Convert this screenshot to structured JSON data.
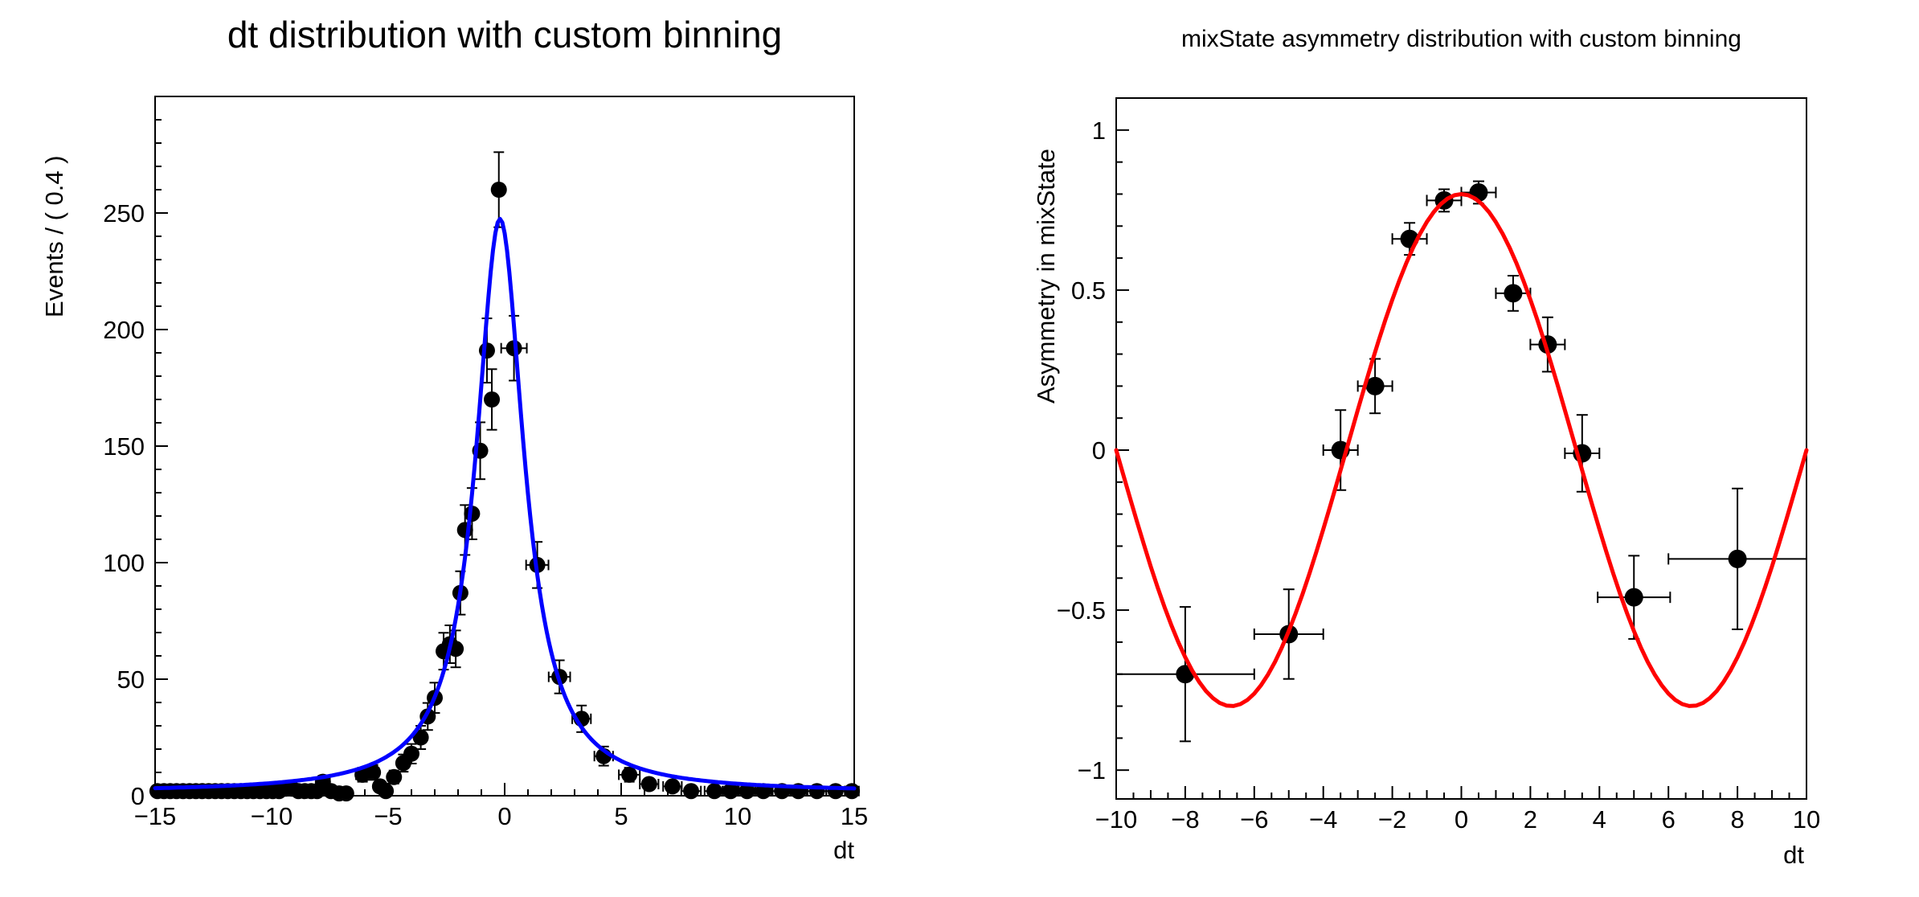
{
  "canvas": {
    "background": "#ffffff"
  },
  "chart_data": [
    {
      "id": "dt_distribution",
      "type": "scatter",
      "title": "dt distribution with custom binning",
      "xlabel": "dt",
      "ylabel": "Events / ( 0.4 )",
      "xlim": [
        -15,
        15
      ],
      "ylim": [
        0,
        300
      ],
      "xticks": [
        -15,
        -10,
        -5,
        0,
        5,
        10,
        15
      ],
      "yticks": [
        0,
        50,
        100,
        150,
        200,
        250
      ],
      "x_minor_step": 1,
      "y_minor_step": 10,
      "grid": false,
      "legend": "none",
      "marker_color": "#000000",
      "error_color": "#000000",
      "curve_color": "#0000ff",
      "curve": {
        "shape": "cauchy",
        "amplitude": 246,
        "center": -0.2,
        "hwhm": 1.25,
        "baseline": 1.5
      },
      "points": [
        {
          "x": -14.9,
          "y": 2,
          "ex": 0.14,
          "ey": 1.4
        },
        {
          "x": -14.62,
          "y": 2,
          "ex": 0.14,
          "ey": 1.4
        },
        {
          "x": -14.35,
          "y": 2,
          "ex": 0.14,
          "ey": 1.4
        },
        {
          "x": -14.08,
          "y": 2,
          "ex": 0.14,
          "ey": 1.4
        },
        {
          "x": -13.8,
          "y": 2,
          "ex": 0.14,
          "ey": 1.4
        },
        {
          "x": -13.52,
          "y": 2,
          "ex": 0.14,
          "ey": 1.4
        },
        {
          "x": -13.25,
          "y": 2,
          "ex": 0.14,
          "ey": 1.4
        },
        {
          "x": -12.98,
          "y": 2,
          "ex": 0.14,
          "ey": 1.4
        },
        {
          "x": -12.7,
          "y": 2,
          "ex": 0.14,
          "ey": 1.4
        },
        {
          "x": -12.42,
          "y": 2,
          "ex": 0.14,
          "ey": 1.4
        },
        {
          "x": -12.15,
          "y": 2,
          "ex": 0.14,
          "ey": 1.4
        },
        {
          "x": -11.88,
          "y": 2,
          "ex": 0.14,
          "ey": 1.4
        },
        {
          "x": -11.6,
          "y": 2,
          "ex": 0.14,
          "ey": 1.4
        },
        {
          "x": -11.32,
          "y": 2,
          "ex": 0.14,
          "ey": 1.4
        },
        {
          "x": -11.05,
          "y": 2,
          "ex": 0.14,
          "ey": 1.4
        },
        {
          "x": -10.78,
          "y": 2,
          "ex": 0.14,
          "ey": 1.4
        },
        {
          "x": -10.5,
          "y": 2,
          "ex": 0.14,
          "ey": 1.4
        },
        {
          "x": -10.22,
          "y": 2,
          "ex": 0.14,
          "ey": 1.4
        },
        {
          "x": -9.95,
          "y": 2,
          "ex": 0.14,
          "ey": 1.4
        },
        {
          "x": -9.68,
          "y": 2,
          "ex": 0.14,
          "ey": 1.4
        },
        {
          "x": -9.4,
          "y": 3,
          "ex": 0.14,
          "ey": 1.7
        },
        {
          "x": -9.12,
          "y": 3,
          "ex": 0.14,
          "ey": 1.7
        },
        {
          "x": -8.85,
          "y": 2,
          "ex": 0.14,
          "ey": 1.4
        },
        {
          "x": -8.58,
          "y": 2,
          "ex": 0.14,
          "ey": 1.4
        },
        {
          "x": -8.3,
          "y": 2,
          "ex": 0.14,
          "ey": 1.4
        },
        {
          "x": -8.05,
          "y": 2,
          "ex": 0.14,
          "ey": 1.4
        },
        {
          "x": -7.8,
          "y": 6,
          "ex": 0.3,
          "ey": 2.5
        },
        {
          "x": -7.45,
          "y": 2,
          "ex": 0.2,
          "ey": 1.4
        },
        {
          "x": -7.1,
          "y": 1,
          "ex": 0.18,
          "ey": 1.0
        },
        {
          "x": -6.8,
          "y": 1,
          "ex": 0.18,
          "ey": 1.0
        },
        {
          "x": -6.1,
          "y": 9,
          "ex": 0.28,
          "ey": 3.0
        },
        {
          "x": -5.65,
          "y": 10,
          "ex": 0.25,
          "ey": 3.2
        },
        {
          "x": -5.35,
          "y": 4,
          "ex": 0.18,
          "ey": 2.0
        },
        {
          "x": -5.1,
          "y": 2,
          "ex": 0.15,
          "ey": 1.4
        },
        {
          "x": -4.75,
          "y": 8,
          "ex": 0.2,
          "ey": 2.8
        },
        {
          "x": -4.35,
          "y": 14,
          "ex": 0.2,
          "ey": 3.7
        },
        {
          "x": -4.0,
          "y": 18,
          "ex": 0.2,
          "ey": 4.2
        },
        {
          "x": -3.6,
          "y": 25,
          "ex": 0.2,
          "ey": 5.0
        },
        {
          "x": -3.3,
          "y": 34,
          "ex": 0.18,
          "ey": 5.8
        },
        {
          "x": -3.0,
          "y": 42,
          "ex": 0.18,
          "ey": 6.5
        },
        {
          "x": -2.62,
          "y": 62,
          "ex": 0.15,
          "ey": 7.9
        },
        {
          "x": -2.35,
          "y": 65,
          "ex": 0.13,
          "ey": 8.1
        },
        {
          "x": -2.1,
          "y": 63,
          "ex": 0.13,
          "ey": 7.9
        },
        {
          "x": -1.9,
          "y": 87,
          "ex": 0.13,
          "ey": 9.3
        },
        {
          "x": -1.7,
          "y": 114,
          "ex": 0.13,
          "ey": 10.7
        },
        {
          "x": -1.4,
          "y": 121,
          "ex": 0.13,
          "ey": 11.0
        },
        {
          "x": -1.05,
          "y": 148,
          "ex": 0.13,
          "ey": 12.2
        },
        {
          "x": -0.76,
          "y": 191,
          "ex": 0.13,
          "ey": 13.8
        },
        {
          "x": -0.55,
          "y": 170,
          "ex": 0.12,
          "ey": 13.0
        },
        {
          "x": -0.25,
          "y": 260,
          "ex": 0.15,
          "ey": 16.1
        },
        {
          "x": 0.4,
          "y": 192,
          "ex": 0.55,
          "ey": 13.9
        },
        {
          "x": 1.4,
          "y": 99,
          "ex": 0.48,
          "ey": 9.9
        },
        {
          "x": 2.35,
          "y": 51,
          "ex": 0.46,
          "ey": 7.1
        },
        {
          "x": 3.3,
          "y": 33,
          "ex": 0.4,
          "ey": 5.7
        },
        {
          "x": 4.25,
          "y": 17,
          "ex": 0.4,
          "ey": 4.1
        },
        {
          "x": 5.35,
          "y": 9,
          "ex": 0.45,
          "ey": 3.0
        },
        {
          "x": 6.2,
          "y": 5,
          "ex": 0.4,
          "ey": 2.2
        },
        {
          "x": 7.2,
          "y": 4,
          "ex": 0.4,
          "ey": 2.0
        },
        {
          "x": 8.0,
          "y": 2,
          "ex": 0.42,
          "ey": 1.4
        },
        {
          "x": 9.0,
          "y": 2,
          "ex": 0.42,
          "ey": 1.4
        },
        {
          "x": 9.7,
          "y": 2,
          "ex": 0.35,
          "ey": 1.4
        },
        {
          "x": 10.4,
          "y": 2,
          "ex": 0.35,
          "ey": 1.4
        },
        {
          "x": 11.1,
          "y": 2,
          "ex": 0.35,
          "ey": 1.4
        },
        {
          "x": 11.9,
          "y": 2,
          "ex": 0.4,
          "ey": 1.4
        },
        {
          "x": 12.6,
          "y": 2,
          "ex": 0.35,
          "ey": 1.4
        },
        {
          "x": 13.4,
          "y": 2,
          "ex": 0.4,
          "ey": 1.4
        },
        {
          "x": 14.2,
          "y": 2,
          "ex": 0.4,
          "ey": 1.4
        },
        {
          "x": 14.9,
          "y": 2,
          "ex": 0.3,
          "ey": 1.4
        }
      ]
    },
    {
      "id": "mixstate_asymmetry",
      "type": "scatter",
      "title": "mixState asymmetry distribution with custom binning",
      "xlabel": "dt",
      "ylabel": "Asymmetry in mixState",
      "xlim": [
        -10,
        10
      ],
      "ylim": [
        -1.09,
        1.1
      ],
      "xticks": [
        -10,
        -8,
        -6,
        -4,
        -2,
        0,
        2,
        4,
        6,
        8,
        10
      ],
      "yticks": [
        -1,
        -0.5,
        0,
        0.5,
        1
      ],
      "x_minor_step": 0.5,
      "x_mid_step": 1,
      "y_minor_step": 0.1,
      "grid": false,
      "legend": "none",
      "marker_color": "#000000",
      "error_color": "#000000",
      "curve_color": "#ff0000",
      "curve": {
        "shape": "cosine",
        "amplitude": 0.8,
        "period": 13.333,
        "phase": 0
      },
      "points": [
        {
          "x": -8.0,
          "y": -0.7,
          "ex": 2.0,
          "ey": 0.21
        },
        {
          "x": -5.0,
          "y": -0.575,
          "ex": 1.0,
          "ey": 0.14
        },
        {
          "x": -3.5,
          "y": 0.0,
          "ex": 0.5,
          "ey": 0.125
        },
        {
          "x": -2.5,
          "y": 0.2,
          "ex": 0.5,
          "ey": 0.085
        },
        {
          "x": -1.5,
          "y": 0.66,
          "ex": 0.5,
          "ey": 0.05
        },
        {
          "x": -0.5,
          "y": 0.78,
          "ex": 0.5,
          "ey": 0.035
        },
        {
          "x": 0.5,
          "y": 0.805,
          "ex": 0.5,
          "ey": 0.035
        },
        {
          "x": 1.5,
          "y": 0.49,
          "ex": 0.5,
          "ey": 0.055
        },
        {
          "x": 2.5,
          "y": 0.33,
          "ex": 0.5,
          "ey": 0.085
        },
        {
          "x": 3.5,
          "y": -0.01,
          "ex": 0.5,
          "ey": 0.12
        },
        {
          "x": 5.0,
          "y": -0.46,
          "ex": 1.05,
          "ey": 0.13
        },
        {
          "x": 8.0,
          "y": -0.34,
          "ex": 2.0,
          "ey": 0.22
        }
      ]
    }
  ]
}
